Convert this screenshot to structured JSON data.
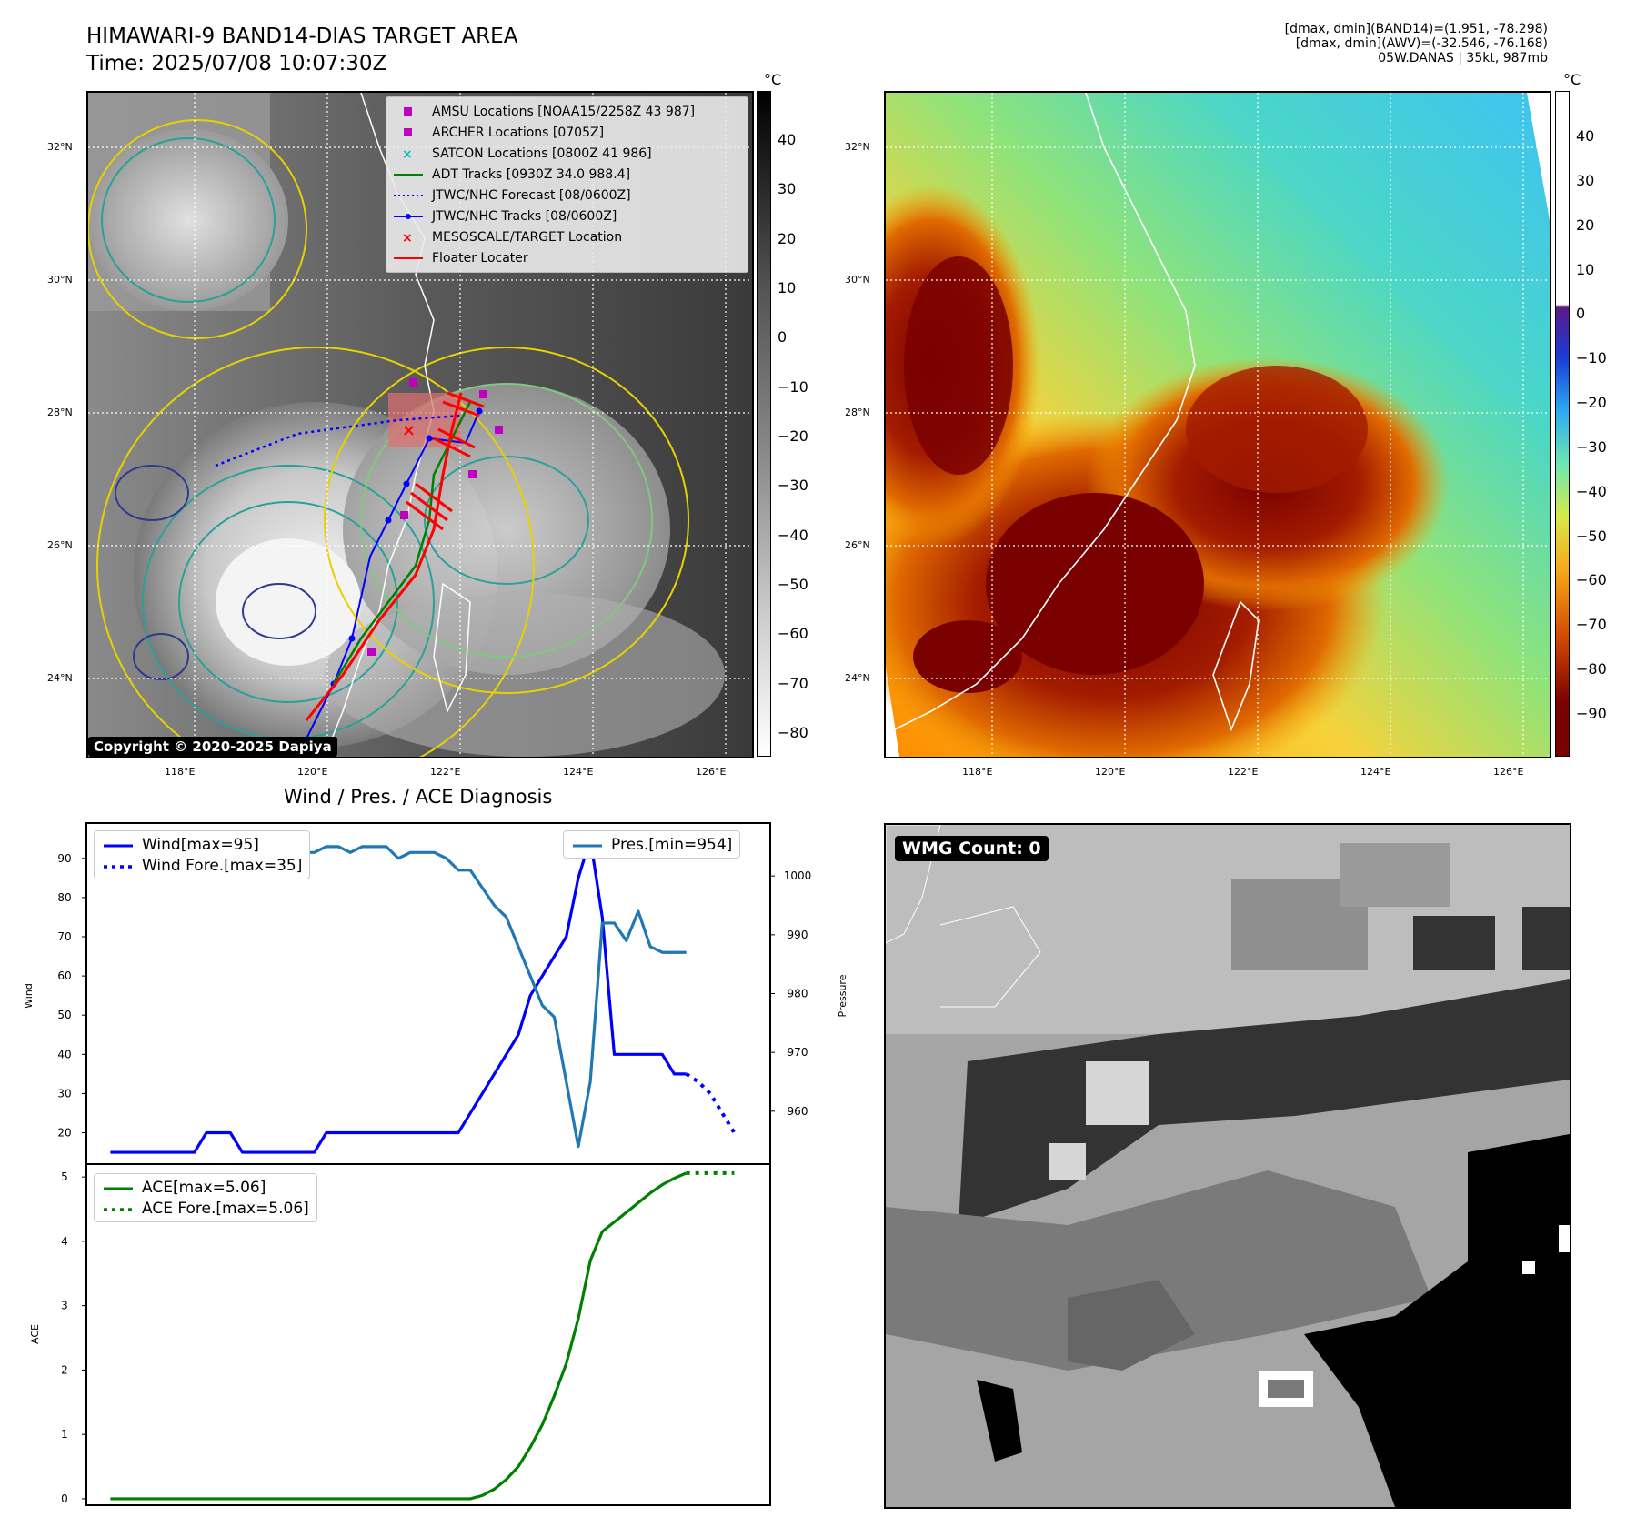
{
  "header": {
    "title_line1": "HIMAWARI-9 BAND14-DIAS TARGET AREA",
    "title_line2": "Time: 2025/07/08 10:07:30Z",
    "info_line1": "[dmax, dmin](BAND14)=(1.951, -78.298)",
    "info_line2": "[dmax, dmin](AWV)=(-32.546, -76.168)",
    "info_line3": "05W.DANAS | 35kt, 987mb"
  },
  "map_axes": {
    "lat_labels": [
      "32°N",
      "30°N",
      "28°N",
      "26°N",
      "24°N"
    ],
    "lon_labels": [
      "118°E",
      "120°E",
      "122°E",
      "124°E",
      "126°E"
    ]
  },
  "ir_legend": [
    {
      "label": "AMSU Locations [NOAA15/2258Z 43 987]",
      "symbol": "square",
      "color": "#bf00bf"
    },
    {
      "label": "ARCHER Locations [0705Z]",
      "symbol": "square",
      "color": "#bf00bf"
    },
    {
      "label": "SATCON Locations [0800Z 41 986]",
      "symbol": "x",
      "color": "#00bfbf"
    },
    {
      "label": "ADT Tracks [0930Z 34.0 988.4]",
      "symbol": "line",
      "color": "#008000"
    },
    {
      "label": "JTWC/NHC Forecast [08/0600Z]",
      "symbol": "dotted",
      "color": "#0000ff"
    },
    {
      "label": "JTWC/NHC Tracks [08/0600Z]",
      "symbol": "line-dot",
      "color": "#0000ff"
    },
    {
      "label": "MESOSCALE/TARGET Location",
      "symbol": "x",
      "color": "#ff0000"
    },
    {
      "label": "Floater Locater",
      "symbol": "line",
      "color": "#ff0000"
    }
  ],
  "copyright": "Copyright © 2020-2025 Dapiya",
  "colorbar_left": {
    "unit": "°C",
    "ticks": [
      "40",
      "30",
      "20",
      "10",
      "0",
      "−10",
      "−20",
      "−30",
      "−40",
      "−50",
      "−60",
      "−70",
      "−80"
    ]
  },
  "colorbar_right": {
    "unit": "°C",
    "ticks": [
      "40",
      "30",
      "20",
      "10",
      "0",
      "−10",
      "−20",
      "−30",
      "−40",
      "−50",
      "−60",
      "−70",
      "−80",
      "−90"
    ]
  },
  "diag_title": "Wind / Pres. / ACE Diagnosis",
  "wmg_label": "WMG Count: 0",
  "chart_data": [
    {
      "type": "line",
      "ylabel": "Wind",
      "y2label": "Pressure",
      "ylim": [
        12,
        99
      ],
      "y2lim": [
        951,
        1009
      ],
      "yticks": [
        20,
        30,
        40,
        50,
        60,
        70,
        80,
        90
      ],
      "y2ticks": [
        960,
        970,
        980,
        990,
        1000
      ],
      "series": [
        {
          "name": "Wind[max=95]",
          "axis": "left",
          "style": "solid",
          "color": "#0000ff",
          "x": [
            0,
            1,
            2,
            3,
            4,
            5,
            6,
            7,
            8,
            9,
            10,
            11,
            12,
            13,
            14,
            15,
            16,
            17,
            18,
            19,
            20,
            21,
            22,
            23,
            24,
            25,
            26,
            27,
            28,
            29,
            30,
            31,
            32,
            33,
            34,
            35,
            36,
            37,
            38,
            39,
            40,
            41,
            42,
            43,
            44,
            45,
            46,
            47,
            48
          ],
          "values": [
            15,
            15,
            15,
            15,
            15,
            15,
            15,
            15,
            20,
            20,
            20,
            15,
            15,
            15,
            15,
            15,
            15,
            15,
            20,
            20,
            20,
            20,
            20,
            20,
            20,
            20,
            20,
            20,
            20,
            20,
            25,
            30,
            35,
            40,
            45,
            55,
            60,
            65,
            70,
            85,
            95,
            75,
            40,
            40,
            40,
            40,
            40,
            35,
            35
          ]
        },
        {
          "name": "Wind Fore.[max=35]",
          "axis": "left",
          "style": "dotted",
          "color": "#0000ff",
          "x": [
            48,
            49,
            50,
            51,
            52
          ],
          "values": [
            35,
            33,
            30,
            25,
            20
          ]
        },
        {
          "name": "Pres.[min=954]",
          "axis": "right",
          "style": "solid",
          "color": "#1f77b4",
          "x": [
            0,
            1,
            2,
            3,
            4,
            5,
            6,
            7,
            8,
            9,
            10,
            11,
            12,
            13,
            14,
            15,
            16,
            17,
            18,
            19,
            20,
            21,
            22,
            23,
            24,
            25,
            26,
            27,
            28,
            29,
            30,
            31,
            32,
            33,
            34,
            35,
            36,
            37,
            38,
            39,
            40,
            41,
            42,
            43,
            44,
            45,
            46,
            47,
            48
          ],
          "values": [
            1006,
            1006,
            1006,
            1006,
            1006,
            1004,
            1004,
            1004,
            1004,
            1004,
            1004,
            1004,
            1005,
            1005,
            1004,
            1004,
            1004,
            1004,
            1005,
            1005,
            1004,
            1005,
            1005,
            1005,
            1003,
            1004,
            1004,
            1004,
            1003,
            1001,
            1001,
            998,
            995,
            993,
            988,
            983,
            978,
            976,
            965,
            954,
            965,
            992,
            992,
            989,
            994,
            988,
            987,
            987,
            987
          ]
        }
      ]
    },
    {
      "type": "line",
      "ylabel": "ACE",
      "ylim": [
        -0.1,
        5.2
      ],
      "yticks": [
        0,
        1,
        2,
        3,
        4,
        5
      ],
      "series": [
        {
          "name": "ACE[max=5.06]",
          "style": "solid",
          "color": "#008000",
          "x": [
            0,
            1,
            2,
            3,
            4,
            5,
            6,
            7,
            8,
            9,
            10,
            11,
            12,
            13,
            14,
            15,
            16,
            17,
            18,
            19,
            20,
            21,
            22,
            23,
            24,
            25,
            26,
            27,
            28,
            29,
            30,
            31,
            32,
            33,
            34,
            35,
            36,
            37,
            38,
            39,
            40,
            41,
            42,
            43,
            44,
            45,
            46,
            47,
            48
          ],
          "values": [
            0,
            0,
            0,
            0,
            0,
            0,
            0,
            0,
            0,
            0,
            0,
            0,
            0,
            0,
            0,
            0,
            0,
            0,
            0,
            0,
            0,
            0,
            0,
            0,
            0,
            0,
            0,
            0,
            0,
            0,
            0,
            0.05,
            0.15,
            0.3,
            0.5,
            0.8,
            1.15,
            1.6,
            2.1,
            2.8,
            3.7,
            4.15,
            4.3,
            4.45,
            4.6,
            4.75,
            4.88,
            4.98,
            5.06
          ]
        },
        {
          "name": "ACE Fore.[max=5.06]",
          "style": "dotted",
          "color": "#008000",
          "x": [
            48,
            49,
            50,
            51,
            52
          ],
          "values": [
            5.06,
            5.06,
            5.06,
            5.06,
            5.06
          ]
        }
      ]
    }
  ]
}
